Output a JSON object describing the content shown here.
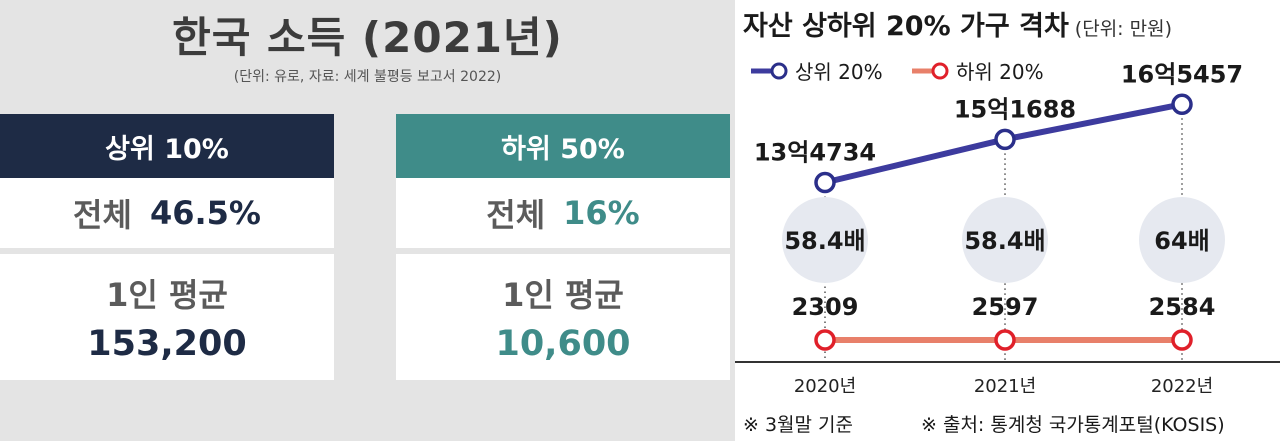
{
  "left": {
    "title": "한국 소득 (2021년)",
    "subtitle": "(단위: 유로, 자료: 세계 불평등 보고서 2022)",
    "top": {
      "header": "상위 10%",
      "total_label": "전체",
      "total_value": "46.5%",
      "avg_label": "1인 평균",
      "avg_value": "153,200"
    },
    "bottom": {
      "header": "하위 50%",
      "total_label": "전체",
      "total_value": "16%",
      "avg_label": "1인 평균",
      "avg_value": "10,600"
    },
    "colors": {
      "top": "#1e2b45",
      "bottom": "#3f8c89",
      "background": "#e4e4e4"
    }
  },
  "right": {
    "title": "자산 상하위 20% 가구 격차",
    "unit": "(단위: 만원)",
    "footnote_left": "※ 3월말 기준",
    "footnote_right": "※ 출처: 통계청 국가통계포털(KOSIS)"
  },
  "chart_data": {
    "type": "line",
    "title": "자산 상하위 20% 가구 격차",
    "x": [
      "2020년",
      "2021년",
      "2022년"
    ],
    "series": [
      {
        "name": "상위 20%",
        "values": [
          134734,
          151688,
          165457
        ],
        "labels": [
          "13억4734",
          "15억1688",
          "16억5457"
        ],
        "color": "#3d3b9e"
      },
      {
        "name": "하위 20%",
        "values": [
          2309,
          2597,
          2584
        ],
        "labels": [
          "2309",
          "2597",
          "2584"
        ],
        "color": "#e8806a"
      }
    ],
    "ratios": [
      "58.4배",
      "58.4배",
      "64배"
    ],
    "legend": "top-left",
    "grid": false
  }
}
